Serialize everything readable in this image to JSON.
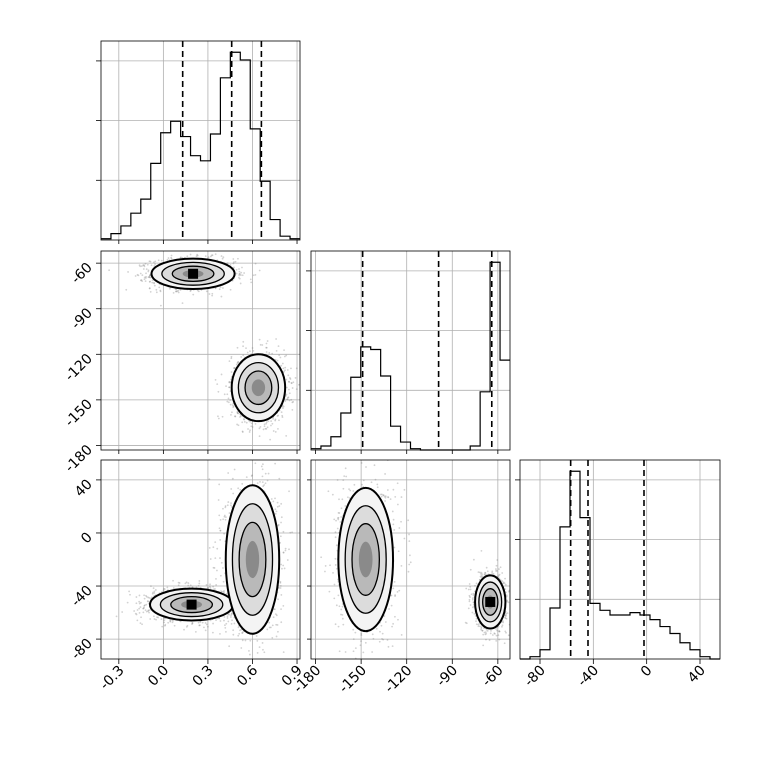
{
  "chart_data": {
    "type": "corner",
    "grid": true,
    "parameters": [
      {
        "ticks": [
          "-0.3",
          "0.0",
          "0.3",
          "0.6",
          "0.9"
        ],
        "tick_values": [
          -0.3,
          0.0,
          0.3,
          0.6,
          0.9
        ],
        "range": [
          -0.42,
          0.92
        ],
        "quantiles": [
          0.13,
          0.46,
          0.66
        ],
        "histogram": {
          "edges": [
            -0.42,
            -0.353,
            -0.286,
            -0.219,
            -0.152,
            -0.085,
            -0.018,
            0.049,
            0.116,
            0.183,
            0.25,
            0.317,
            0.384,
            0.451,
            0.518,
            0.585,
            0.652,
            0.719,
            0.786,
            0.853,
            0.92
          ],
          "counts": [
            1,
            5,
            11,
            21,
            32,
            60,
            84,
            93,
            81,
            66,
            62,
            83,
            127,
            147,
            141,
            87,
            46,
            16,
            3,
            1
          ]
        }
      },
      {
        "ticks": [
          "-180",
          "-150",
          "-120",
          "-90",
          "-60"
        ],
        "tick_values": [
          -180,
          -150,
          -120,
          -90,
          -60
        ],
        "range": [
          -183,
          -52
        ],
        "quantiles": [
          -149,
          -99,
          -64
        ],
        "histogram": {
          "edges": [
            -183,
            -176.45,
            -169.9,
            -163.35,
            -156.8,
            -150.25,
            -143.7,
            -137.15,
            -130.6,
            -124.05,
            -117.5,
            -110.95,
            -104.4,
            -97.85,
            -91.3,
            -84.75,
            -78.2,
            -71.65,
            -65.1,
            -58.55,
            -52
          ],
          "counts": [
            1,
            3,
            10,
            28,
            55,
            78,
            76,
            56,
            18,
            6,
            1,
            0,
            0,
            0,
            0,
            0,
            3,
            44,
            142,
            68
          ]
        }
      },
      {
        "ticks": [
          "-80",
          "-40",
          "0",
          "40"
        ],
        "tick_values": [
          -80,
          -40,
          0,
          40
        ],
        "range": [
          -95,
          55
        ],
        "quantiles": [
          -57,
          -44,
          -2
        ],
        "histogram": {
          "edges": [
            -95,
            -87.5,
            -80,
            -72.5,
            -65,
            -57.5,
            -50,
            -42.5,
            -35,
            -27.5,
            -20,
            -12.5,
            -5,
            2.5,
            10,
            17.5,
            25,
            32.5,
            40,
            47.5,
            55
          ],
          "counts": [
            0,
            1,
            4,
            22,
            57,
            81,
            61,
            24,
            21,
            19,
            19,
            20,
            19,
            17,
            14,
            11,
            7,
            4,
            1,
            0
          ]
        }
      }
    ],
    "scatter_2d": [
      {
        "x_param": 0,
        "y_param": 1,
        "modes": [
          {
            "cx": 0.2,
            "cy": -67,
            "sx": 0.14,
            "sy": 5,
            "level_peak": 0.85
          },
          {
            "cx": 0.64,
            "cy": -142,
            "sx": 0.09,
            "sy": 11,
            "level_peak": 0.55
          }
        ]
      },
      {
        "x_param": 0,
        "y_param": 2,
        "modes": [
          {
            "cx": 0.19,
            "cy": -54,
            "sx": 0.14,
            "sy": 6,
            "level_peak": 0.8
          },
          {
            "cx": 0.6,
            "cy": -20,
            "sx": 0.09,
            "sy": 28,
            "level_peak": 0.5
          }
        ]
      },
      {
        "x_param": 1,
        "y_param": 2,
        "modes": [
          {
            "cx": -147,
            "cy": -20,
            "sx": 9,
            "sy": 27,
            "level_peak": 0.45
          },
          {
            "cx": -65,
            "cy": -52,
            "sx": 5,
            "sy": 10,
            "level_peak": 0.8
          }
        ]
      }
    ]
  }
}
